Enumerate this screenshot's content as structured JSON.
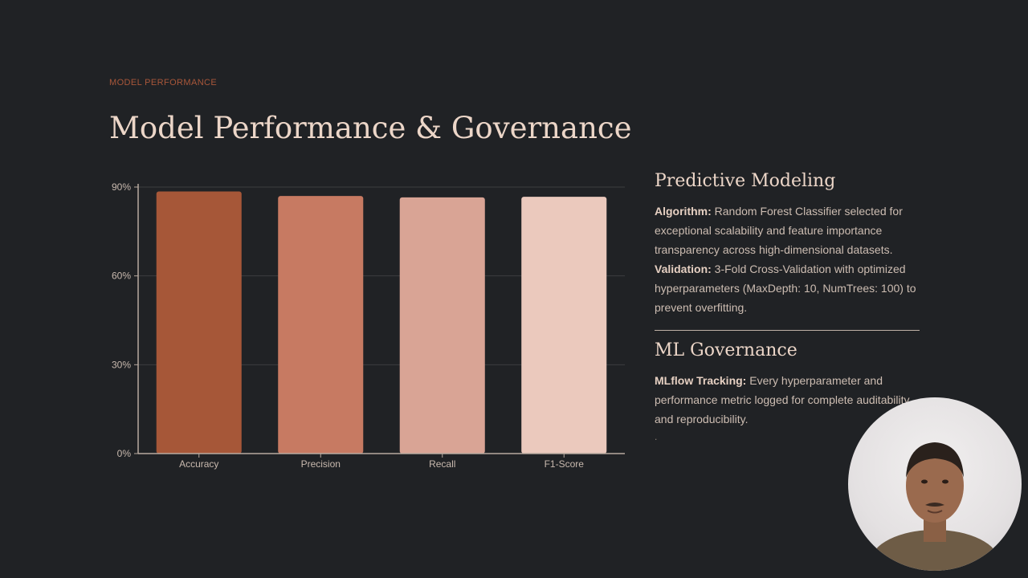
{
  "slide": {
    "eyebrow": "MODEL PERFORMANCE",
    "title": "Model Performance & Governance"
  },
  "chart_data": {
    "type": "bar",
    "categories": [
      "Accuracy",
      "Precision",
      "Recall",
      "F1-Score"
    ],
    "values": [
      88.5,
      87,
      86.5,
      86.7
    ],
    "ylim": [
      0,
      90
    ],
    "yticks": [
      "0%",
      "30%",
      "60%",
      "90%"
    ],
    "ytick_values": [
      0,
      30,
      60,
      90
    ],
    "colors": [
      "#a65738",
      "#c77a62",
      "#d9a495",
      "#ebc9bd"
    ],
    "grid": true
  },
  "predictive": {
    "heading": "Predictive Modeling",
    "algorithm_label": "Algorithm:",
    "algorithm_text": " Random Forest Classifier selected for exceptional scalability and feature importance transparency across high-dimensional datasets.",
    "validation_label": "Validation:",
    "validation_text": " 3-Fold Cross-Validation with optimized hyperparameters (MaxDepth: 10, NumTrees: 100) to prevent overfitting."
  },
  "governance": {
    "heading": "ML Governance",
    "tracking_label": "MLflow Tracking:",
    "tracking_text": " Every hyperparameter and performance metric logged for complete auditability and reproducibility.",
    "trailing_dot": "."
  },
  "colors": {
    "background": "#202225",
    "accent": "#a9573a",
    "title": "#ecd6c8"
  },
  "webcam": {
    "icon": "presenter-webcam"
  }
}
